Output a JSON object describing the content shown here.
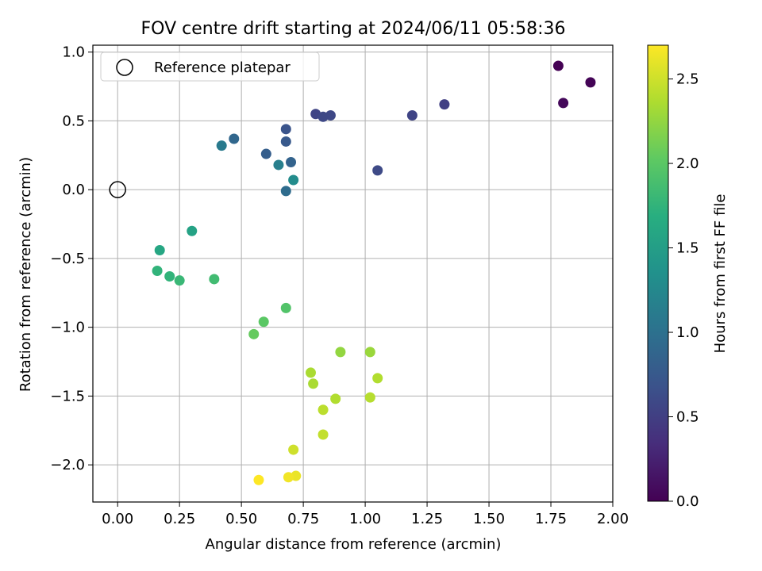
{
  "chart_data": {
    "type": "scatter",
    "title": "FOV centre drift starting at 2024/06/11 05:58:36",
    "xlabel": "Angular distance from reference (arcmin)",
    "ylabel": "Rotation from reference (arcmin)",
    "xlim": [
      -0.1,
      2.0
    ],
    "ylim": [
      -2.27,
      1.05
    ],
    "xticks": [
      0.0,
      0.25,
      0.5,
      0.75,
      1.0,
      1.25,
      1.5,
      1.75,
      2.0
    ],
    "xtick_labels": [
      "0.00",
      "0.25",
      "0.50",
      "0.75",
      "1.00",
      "1.25",
      "1.50",
      "1.75",
      "2.00"
    ],
    "yticks": [
      1.0,
      0.5,
      0.0,
      -0.5,
      -1.0,
      -1.5,
      -2.0
    ],
    "ytick_labels": [
      "1.0",
      "0.5",
      "0.0",
      "−0.5",
      "−1.0",
      "−1.5",
      "−2.0"
    ],
    "grid": true,
    "legend": {
      "position": "upper-left",
      "label": "Reference platepar",
      "marker": "open-circle"
    },
    "reference_point": {
      "x": 0.0,
      "y": 0.0
    },
    "colorbar": {
      "label": "Hours from first FF file",
      "range": [
        0.0,
        2.7
      ],
      "ticks": [
        0.0,
        0.5,
        1.0,
        1.5,
        2.0,
        2.5
      ],
      "tick_labels": [
        "0.0",
        "0.5",
        "1.0",
        "1.5",
        "2.0",
        "2.5"
      ],
      "colormap": "viridis"
    },
    "points": [
      {
        "x": 1.78,
        "y": 0.9,
        "hours": 0.0
      },
      {
        "x": 1.91,
        "y": 0.78,
        "hours": 0.02
      },
      {
        "x": 1.8,
        "y": 0.63,
        "hours": 0.05
      },
      {
        "x": 1.32,
        "y": 0.62,
        "hours": 0.5
      },
      {
        "x": 1.19,
        "y": 0.54,
        "hours": 0.55
      },
      {
        "x": 0.8,
        "y": 0.55,
        "hours": 0.55
      },
      {
        "x": 0.83,
        "y": 0.53,
        "hours": 0.58
      },
      {
        "x": 0.86,
        "y": 0.54,
        "hours": 0.58
      },
      {
        "x": 1.05,
        "y": 0.14,
        "hours": 0.6
      },
      {
        "x": 0.68,
        "y": 0.44,
        "hours": 0.7
      },
      {
        "x": 0.68,
        "y": 0.35,
        "hours": 0.75
      },
      {
        "x": 0.6,
        "y": 0.26,
        "hours": 0.8
      },
      {
        "x": 0.7,
        "y": 0.2,
        "hours": 0.85
      },
      {
        "x": 0.47,
        "y": 0.37,
        "hours": 0.9
      },
      {
        "x": 0.68,
        "y": -0.01,
        "hours": 0.95
      },
      {
        "x": 0.42,
        "y": 0.32,
        "hours": 1.1
      },
      {
        "x": 0.65,
        "y": 0.18,
        "hours": 1.15
      },
      {
        "x": 0.71,
        "y": 0.07,
        "hours": 1.3
      },
      {
        "x": 0.3,
        "y": -0.3,
        "hours": 1.55
      },
      {
        "x": 0.17,
        "y": -0.44,
        "hours": 1.6
      },
      {
        "x": 0.16,
        "y": -0.59,
        "hours": 1.75
      },
      {
        "x": 0.21,
        "y": -0.63,
        "hours": 1.75
      },
      {
        "x": 0.25,
        "y": -0.66,
        "hours": 1.8
      },
      {
        "x": 0.39,
        "y": -0.65,
        "hours": 1.85
      },
      {
        "x": 0.68,
        "y": -0.86,
        "hours": 1.95
      },
      {
        "x": 0.59,
        "y": -0.96,
        "hours": 2.0
      },
      {
        "x": 0.55,
        "y": -1.05,
        "hours": 2.05
      },
      {
        "x": 0.9,
        "y": -1.18,
        "hours": 2.25
      },
      {
        "x": 1.02,
        "y": -1.18,
        "hours": 2.28
      },
      {
        "x": 0.78,
        "y": -1.33,
        "hours": 2.35
      },
      {
        "x": 0.79,
        "y": -1.41,
        "hours": 2.35
      },
      {
        "x": 1.05,
        "y": -1.37,
        "hours": 2.38
      },
      {
        "x": 0.88,
        "y": -1.52,
        "hours": 2.38
      },
      {
        "x": 1.02,
        "y": -1.51,
        "hours": 2.4
      },
      {
        "x": 0.83,
        "y": -1.6,
        "hours": 2.42
      },
      {
        "x": 0.83,
        "y": -1.78,
        "hours": 2.45
      },
      {
        "x": 0.71,
        "y": -1.89,
        "hours": 2.5
      },
      {
        "x": 0.72,
        "y": -2.08,
        "hours": 2.62
      },
      {
        "x": 0.69,
        "y": -2.09,
        "hours": 2.65
      },
      {
        "x": 0.57,
        "y": -2.11,
        "hours": 2.7
      }
    ]
  }
}
